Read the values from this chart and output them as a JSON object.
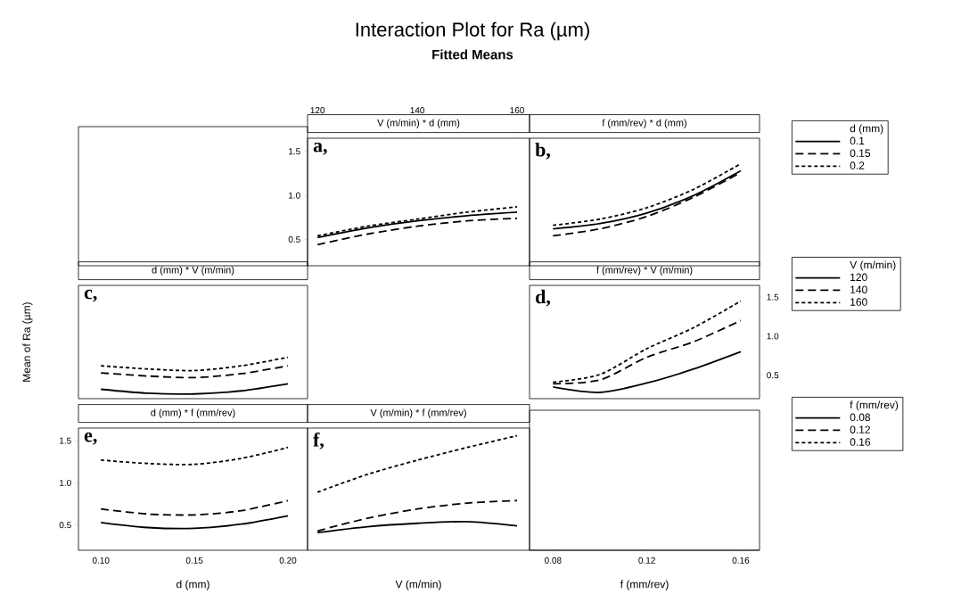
{
  "chart_data": [
    {
      "type": "other",
      "title": "Interaction Plot for Ra (µm)",
      "subtitle": "Fitted Means"
    },
    {
      "type": "line",
      "title": "V (m/min) * d (mm)",
      "annotations": [
        "a,"
      ],
      "x": [
        120,
        130,
        140,
        150,
        160
      ],
      "xlim": [
        118,
        162.5
      ],
      "xticks": [
        120,
        140,
        160
      ],
      "ylim": [
        0.2,
        1.65
      ],
      "yticks": [
        {
          "value": 0.5,
          "label": "0.5"
        },
        {
          "value": 1,
          "label": "1.0"
        },
        {
          "value": 1.5,
          "label": "1.5"
        }
      ],
      "series": [
        {
          "color": "#000000",
          "line_style": "solid",
          "values": [
            0.52,
            0.63,
            0.71,
            0.77,
            0.81
          ]
        },
        {
          "color": "#000000",
          "line_style": "dashed",
          "values": [
            0.44,
            0.56,
            0.65,
            0.71,
            0.74
          ]
        },
        {
          "color": "#000000",
          "line_style": "dotted",
          "values": [
            0.54,
            0.65,
            0.73,
            0.81,
            0.87
          ]
        }
      ]
    },
    {
      "type": "line",
      "title": "f (mm/rev) * d (mm)",
      "annotations": [
        "b,"
      ],
      "x": [
        0.08,
        0.1,
        0.12,
        0.14,
        0.16
      ],
      "xlim": [
        0.07,
        0.168
      ],
      "ylim": [
        0.2,
        1.65
      ],
      "tick_labels": false,
      "legend": "right",
      "legend_title": "d (mm)",
      "series": [
        {
          "name": "0.1",
          "color": "#000000",
          "line_style": "solid",
          "values": [
            0.62,
            0.68,
            0.8,
            1.0,
            1.28
          ]
        },
        {
          "name": "0.15",
          "color": "#000000",
          "line_style": "dashed",
          "values": [
            0.54,
            0.62,
            0.76,
            0.98,
            1.26
          ]
        },
        {
          "name": "0.2",
          "color": "#000000",
          "line_style": "dotted",
          "values": [
            0.66,
            0.73,
            0.86,
            1.07,
            1.36
          ]
        }
      ]
    },
    {
      "type": "line",
      "title": "d (mm) * V (m/min)",
      "annotations": [
        "c,"
      ],
      "ylabel": "Mean of Ra (µm)",
      "x": [
        0.1,
        0.125,
        0.15,
        0.175,
        0.2
      ],
      "xlim": [
        0.088,
        0.2105
      ],
      "ylim": [
        0.2,
        1.65
      ],
      "tick_labels": false,
      "series": [
        {
          "color": "#000000",
          "line_style": "solid",
          "values": [
            0.32,
            0.27,
            0.26,
            0.3,
            0.39
          ]
        },
        {
          "color": "#000000",
          "line_style": "dashed",
          "values": [
            0.53,
            0.49,
            0.47,
            0.52,
            0.62
          ]
        },
        {
          "color": "#000000",
          "line_style": "dotted",
          "values": [
            0.62,
            0.58,
            0.56,
            0.62,
            0.73
          ]
        }
      ]
    },
    {
      "type": "line",
      "title": "f (mm/rev) * V (m/min)",
      "annotations": [
        "d,"
      ],
      "xlabel": "f (mm/rev)",
      "x": [
        0.08,
        0.1,
        0.12,
        0.14,
        0.16
      ],
      "xlim": [
        0.07,
        0.168
      ],
      "xticks": [
        0.08,
        0.12,
        0.16
      ],
      "y2lim": [
        0.2,
        1.65
      ],
      "y2ticks": [
        0.5,
        {
          "value": 1,
          "label": "1.0"
        },
        1.5
      ],
      "legend": "right",
      "legend_title": "V (m/min)",
      "series": [
        {
          "name": "120",
          "color": "#000000",
          "line_style": "solid",
          "axis": "y2",
          "values": [
            0.35,
            0.28,
            0.4,
            0.58,
            0.8
          ]
        },
        {
          "name": "140",
          "color": "#000000",
          "line_style": "dashed",
          "axis": "y2",
          "values": [
            0.39,
            0.44,
            0.73,
            0.93,
            1.2
          ]
        },
        {
          "name": "160",
          "color": "#000000",
          "line_style": "dotted",
          "axis": "y2",
          "values": [
            0.41,
            0.51,
            0.84,
            1.11,
            1.45
          ]
        }
      ]
    },
    {
      "type": "line",
      "title": "d (mm) * f (mm/rev)",
      "annotations": [
        "e,"
      ],
      "xlabel": "d (mm)",
      "x": [
        0.1,
        0.125,
        0.15,
        0.175,
        0.2
      ],
      "xlim": [
        0.088,
        0.2105
      ],
      "xticks": [
        {
          "value": 0.1,
          "label": "0.10"
        },
        0.15,
        {
          "value": 0.2,
          "label": "0.20"
        }
      ],
      "ylim": [
        0.2,
        1.65
      ],
      "yticks": [
        0.5,
        {
          "value": 1,
          "label": "1.0"
        },
        1.5
      ],
      "series": [
        {
          "color": "#000000",
          "line_style": "solid",
          "values": [
            0.53,
            0.47,
            0.46,
            0.51,
            0.61
          ]
        },
        {
          "color": "#000000",
          "line_style": "dashed",
          "values": [
            0.69,
            0.63,
            0.62,
            0.67,
            0.79
          ]
        },
        {
          "color": "#000000",
          "line_style": "dotted",
          "values": [
            1.27,
            1.23,
            1.22,
            1.29,
            1.42
          ]
        }
      ]
    },
    {
      "type": "line",
      "title": "V (m/min) * f (mm/rev)",
      "annotations": [
        "f,"
      ],
      "xlabel": "V (m/min)",
      "x": [
        120,
        130,
        140,
        150,
        160
      ],
      "xlim": [
        118,
        162.5
      ],
      "ylim": [
        0.2,
        1.65
      ],
      "tick_labels": false,
      "legend": "right",
      "legend_title": "f (mm/rev)",
      "series": [
        {
          "name": "0.08",
          "color": "#000000",
          "line_style": "solid",
          "values": [
            0.41,
            0.48,
            0.52,
            0.54,
            0.49
          ]
        },
        {
          "name": "0.12",
          "color": "#000000",
          "line_style": "dashed",
          "values": [
            0.43,
            0.58,
            0.69,
            0.76,
            0.79
          ]
        },
        {
          "name": "0.16",
          "color": "#000000",
          "line_style": "dotted",
          "values": [
            0.89,
            1.1,
            1.27,
            1.42,
            1.56
          ]
        }
      ]
    }
  ]
}
